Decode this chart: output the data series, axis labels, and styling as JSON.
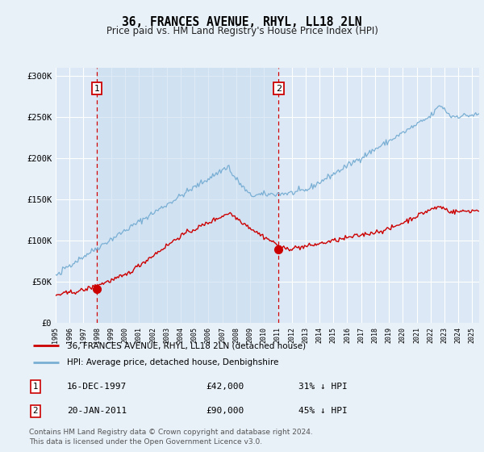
{
  "title": "36, FRANCES AVENUE, RHYL, LL18 2LN",
  "subtitle": "Price paid vs. HM Land Registry's House Price Index (HPI)",
  "background_color": "#e8f0f8",
  "plot_bg_color": "#dce8f5",
  "shade_between_color": "#ccddf0",
  "ylim": [
    0,
    310000
  ],
  "yticks": [
    0,
    50000,
    100000,
    150000,
    200000,
    250000,
    300000
  ],
  "ytick_labels": [
    "£0",
    "£50K",
    "£100K",
    "£150K",
    "£200K",
    "£250K",
    "£300K"
  ],
  "sale1_date_label": "16-DEC-1997",
  "sale1_price": 42000,
  "sale1_price_label": "£42,000",
  "sale1_hpi_label": "31% ↓ HPI",
  "sale1_x": 1997.96,
  "sale2_date_label": "20-JAN-2011",
  "sale2_price": 90000,
  "sale2_price_label": "£90,000",
  "sale2_hpi_label": "45% ↓ HPI",
  "sale2_x": 2011.05,
  "legend_line1": "36, FRANCES AVENUE, RHYL, LL18 2LN (detached house)",
  "legend_line2": "HPI: Average price, detached house, Denbighshire",
  "footer": "Contains HM Land Registry data © Crown copyright and database right 2024.\nThis data is licensed under the Open Government Licence v3.0.",
  "line_color_red": "#cc0000",
  "line_color_blue": "#7aafd4",
  "dashed_line_color": "#cc0000",
  "marker_color_red": "#cc0000",
  "xlim_start": 1995.0,
  "xlim_end": 2025.5
}
